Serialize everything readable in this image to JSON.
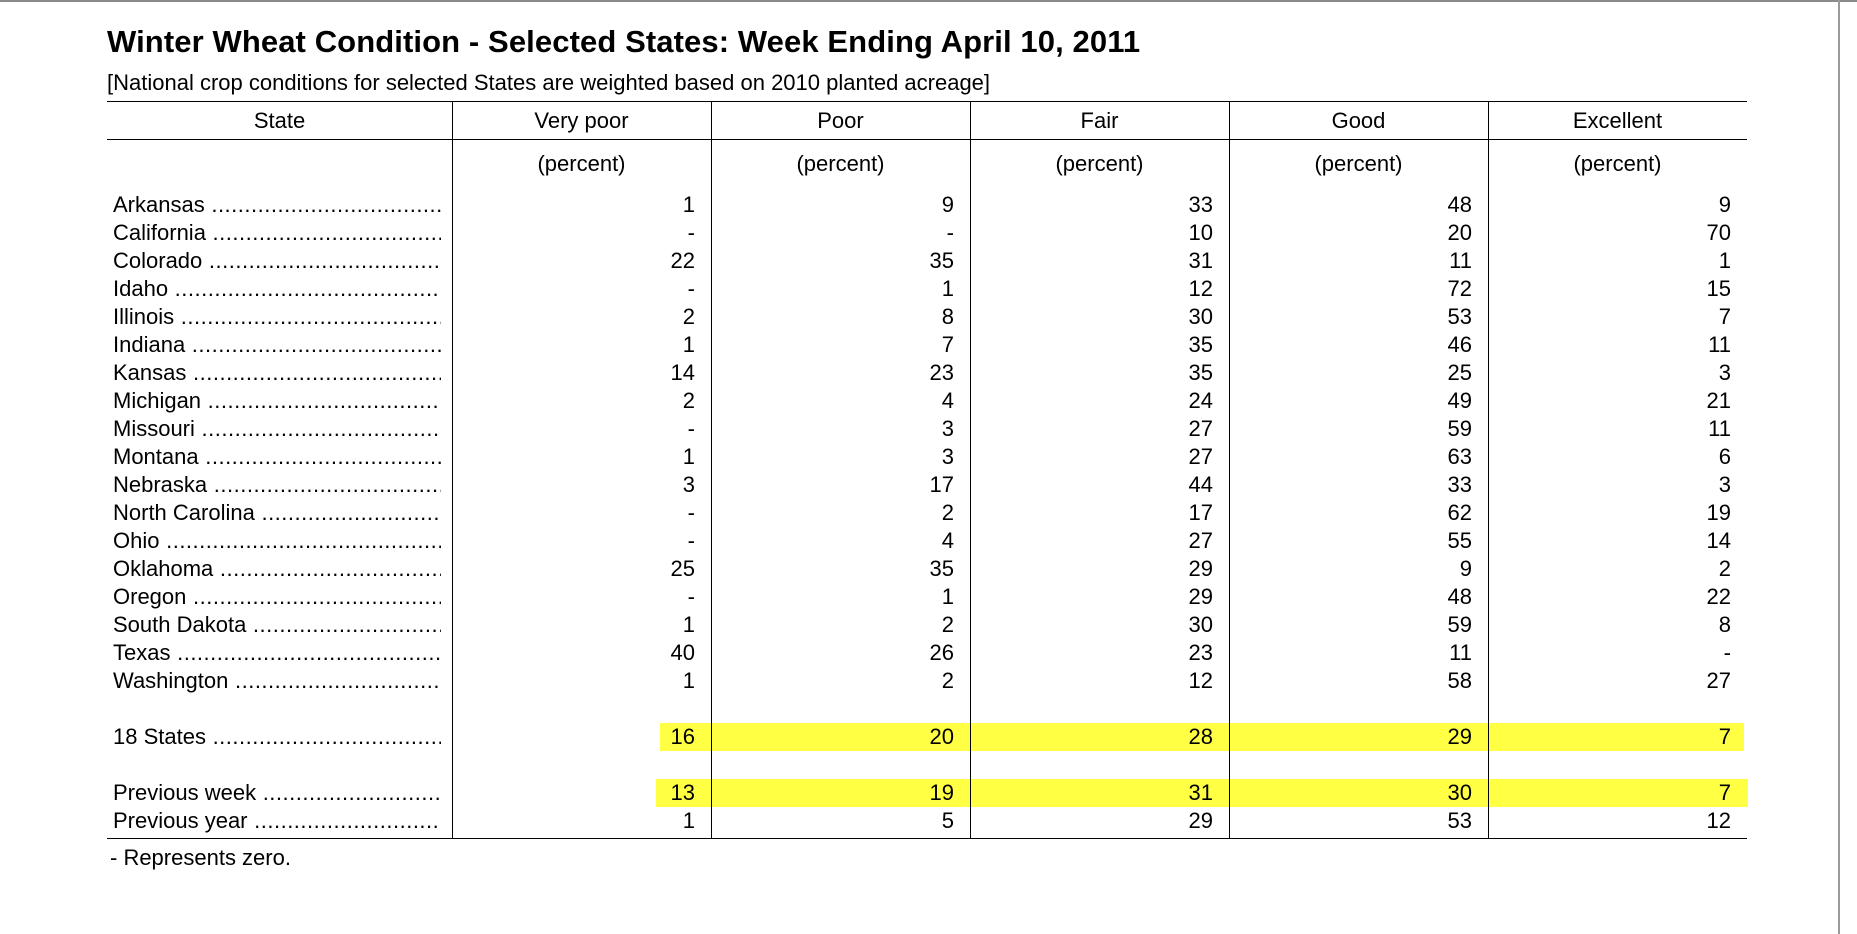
{
  "title": "Winter Wheat Condition - Selected States: Week Ending April 10, 2011",
  "subtitle": "[National crop conditions for selected States are weighted based on 2010 planted acreage]",
  "columns": [
    "State",
    "Very poor",
    "Poor",
    "Fair",
    "Good",
    "Excellent"
  ],
  "unit_label": "(percent)",
  "highlight_color": "#ffff44",
  "rows": [
    {
      "state": "Arkansas",
      "values": [
        "1",
        "9",
        "33",
        "48",
        "9"
      ]
    },
    {
      "state": "California",
      "values": [
        "-",
        "-",
        "10",
        "20",
        "70"
      ]
    },
    {
      "state": "Colorado",
      "values": [
        "22",
        "35",
        "31",
        "11",
        "1"
      ]
    },
    {
      "state": "Idaho",
      "values": [
        "-",
        "1",
        "12",
        "72",
        "15"
      ]
    },
    {
      "state": "Illinois",
      "values": [
        "2",
        "8",
        "30",
        "53",
        "7"
      ]
    },
    {
      "state": "Indiana",
      "values": [
        "1",
        "7",
        "35",
        "46",
        "11"
      ]
    },
    {
      "state": "Kansas",
      "values": [
        "14",
        "23",
        "35",
        "25",
        "3"
      ]
    },
    {
      "state": "Michigan",
      "values": [
        "2",
        "4",
        "24",
        "49",
        "21"
      ]
    },
    {
      "state": "Missouri",
      "values": [
        "-",
        "3",
        "27",
        "59",
        "11"
      ]
    },
    {
      "state": "Montana",
      "values": [
        "1",
        "3",
        "27",
        "63",
        "6"
      ]
    },
    {
      "state": "Nebraska",
      "values": [
        "3",
        "17",
        "44",
        "33",
        "3"
      ]
    },
    {
      "state": "North Carolina",
      "values": [
        "-",
        "2",
        "17",
        "62",
        "19"
      ]
    },
    {
      "state": "Ohio",
      "values": [
        "-",
        "4",
        "27",
        "55",
        "14"
      ]
    },
    {
      "state": "Oklahoma",
      "values": [
        "25",
        "35",
        "29",
        "9",
        "2"
      ]
    },
    {
      "state": "Oregon",
      "values": [
        "-",
        "1",
        "29",
        "48",
        "22"
      ]
    },
    {
      "state": "South Dakota",
      "values": [
        "1",
        "2",
        "30",
        "59",
        "8"
      ]
    },
    {
      "state": "Texas",
      "values": [
        "40",
        "26",
        "23",
        "11",
        "-"
      ]
    },
    {
      "state": "Washington",
      "values": [
        "1",
        "2",
        "12",
        "58",
        "27"
      ]
    }
  ],
  "summary": [
    {
      "state": "18 States",
      "values": [
        "16",
        "20",
        "28",
        "29",
        "7"
      ],
      "highlighted": true
    },
    {
      "state": "Previous week",
      "values": [
        "13",
        "19",
        "31",
        "30",
        "7"
      ],
      "highlighted": true
    },
    {
      "state": "Previous year",
      "values": [
        "1",
        "5",
        "29",
        "53",
        "12"
      ],
      "highlighted": false
    }
  ],
  "footnote": "- Represents zero."
}
